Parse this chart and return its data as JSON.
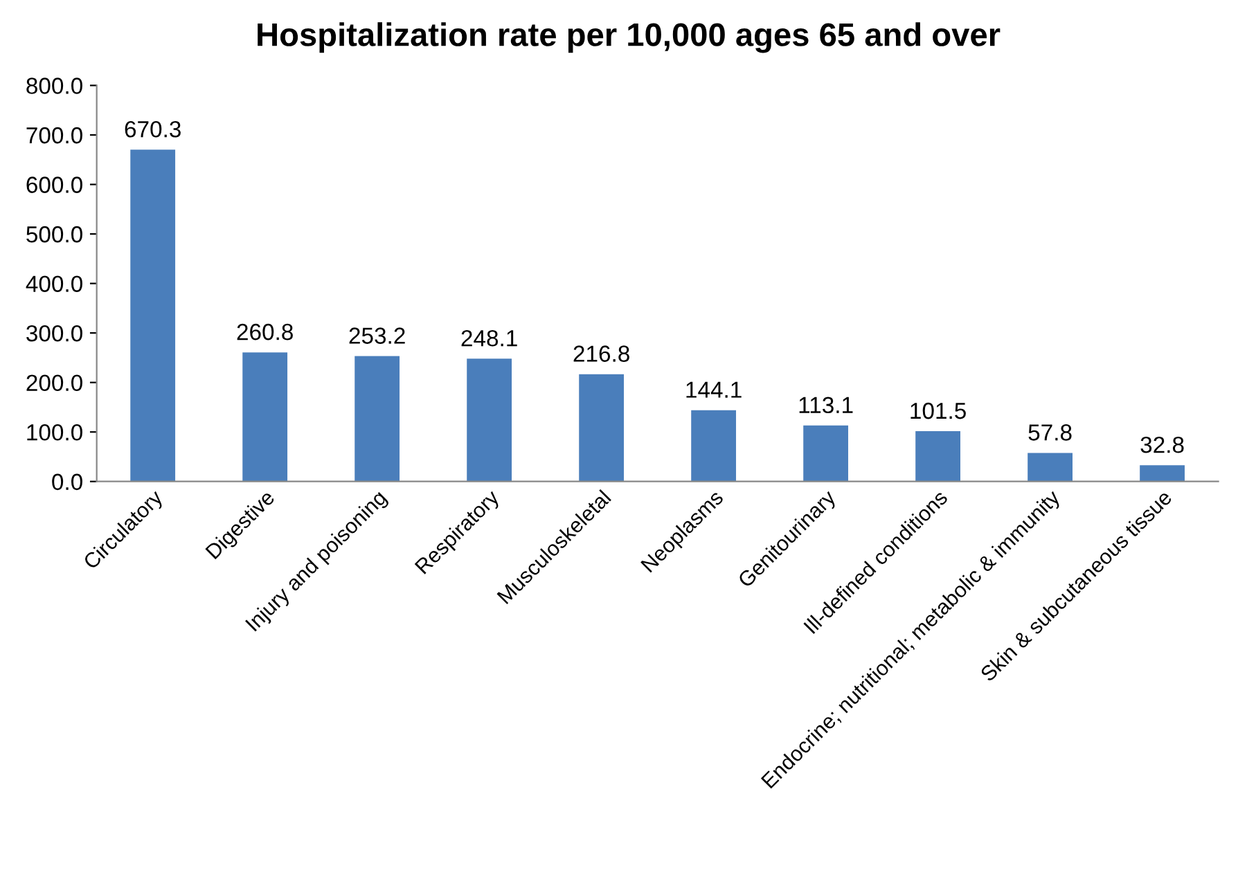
{
  "chart_data": {
    "type": "bar",
    "title": "Hospitalization rate per 10,000 ages 65 and over",
    "categories": [
      "Circulatory",
      "Digestive",
      "Injury and poisoning",
      "Respiratory",
      "Musculoskeletal",
      "Neoplasms",
      "Genitourinary",
      "Ill-defined conditions",
      "Endocrine; nutritional; metabolic & immunity",
      "Skin & subcutaneous tissue"
    ],
    "values": [
      670.3,
      260.8,
      253.2,
      248.1,
      216.8,
      144.1,
      113.1,
      101.5,
      57.8,
      32.8
    ],
    "color": "#4a7ebb",
    "ylim": [
      0,
      800
    ],
    "yticks": [
      {
        "value": 0,
        "label": "0.0"
      },
      {
        "value": 100,
        "label": "100.0"
      },
      {
        "value": 200,
        "label": "200.0"
      },
      {
        "value": 300,
        "label": "300.0"
      },
      {
        "value": 400,
        "label": "400.0"
      },
      {
        "value": 500,
        "label": "500.0"
      },
      {
        "value": 600,
        "label": "600.0"
      },
      {
        "value": 700,
        "label": "700.0"
      },
      {
        "value": 800,
        "label": "800.0"
      }
    ],
    "data_labels": true,
    "grid": false,
    "legend": false
  }
}
